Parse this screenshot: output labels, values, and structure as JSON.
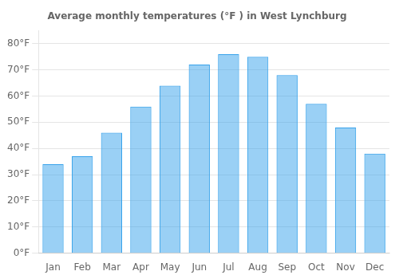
{
  "chart_data": {
    "type": "bar",
    "title": "Average monthly temperatures (°F ) in West Lynchburg",
    "categories": [
      "Jan",
      "Feb",
      "Mar",
      "Apr",
      "May",
      "Jun",
      "Jul",
      "Aug",
      "Sep",
      "Oct",
      "Nov",
      "Dec"
    ],
    "values": [
      34,
      37,
      46,
      56,
      64,
      72,
      76,
      75,
      68,
      57,
      48,
      38
    ],
    "ylim": [
      0,
      85
    ],
    "yticks": [
      {
        "value": 0,
        "label": "0°F"
      },
      {
        "value": 10,
        "label": "10°F"
      },
      {
        "value": 20,
        "label": "20°F"
      },
      {
        "value": 30,
        "label": "30°F"
      },
      {
        "value": 40,
        "label": "40°F"
      },
      {
        "value": 50,
        "label": "50°F"
      },
      {
        "value": 60,
        "label": "60°F"
      },
      {
        "value": 70,
        "label": "70°F"
      },
      {
        "value": 80,
        "label": "80°F"
      }
    ],
    "grid": true
  }
}
